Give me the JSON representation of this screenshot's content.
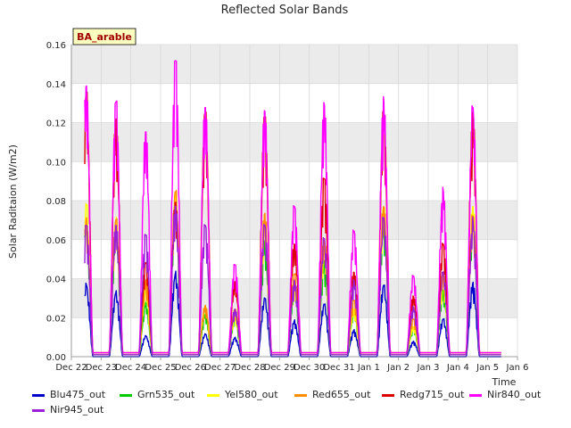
{
  "chart_data": {
    "type": "line",
    "title": "Reflected Solar Bands",
    "xlabel": "Time",
    "ylabel": "Solar Raditaion (W/m2)",
    "annotation": "BA_arable",
    "ylim": [
      0.0,
      0.16
    ],
    "yticks": [
      "0.00",
      "0.02",
      "0.04",
      "0.06",
      "0.08",
      "0.10",
      "0.12",
      "0.14",
      "0.16"
    ],
    "xlim": [
      0,
      15
    ],
    "xticks": [
      {
        "x": 0,
        "label": "Dec 22"
      },
      {
        "x": 1,
        "label": "Dec 23"
      },
      {
        "x": 2,
        "label": "Dec 24"
      },
      {
        "x": 3,
        "label": "Dec 25"
      },
      {
        "x": 4,
        "label": "Dec 26"
      },
      {
        "x": 5,
        "label": "Dec 27"
      },
      {
        "x": 6,
        "label": "Dec 28"
      },
      {
        "x": 7,
        "label": "Dec 29"
      },
      {
        "x": 8,
        "label": "Dec 30"
      },
      {
        "x": 9,
        "label": "Dec 31"
      },
      {
        "x": 10,
        "label": "Jan 1"
      },
      {
        "x": 11,
        "label": "Jan 2"
      },
      {
        "x": 12,
        "label": "Jan 3"
      },
      {
        "x": 13,
        "label": "Jan 4"
      },
      {
        "x": 14,
        "label": "Jan 5"
      },
      {
        "x": 15,
        "label": "Jan 6"
      }
    ],
    "grid": true,
    "legend_position": "bottom",
    "series": [
      {
        "name": "Blu475_out",
        "color": "#0000cc",
        "night": 0.0,
        "peaks": [
          0.038,
          0.034,
          0.011,
          0.044,
          0.012,
          0.01,
          0.031,
          0.019,
          0.028,
          0.014,
          0.038,
          0.008,
          0.02,
          0.039
        ]
      },
      {
        "name": "Grn535_out",
        "color": "#00cc00",
        "night": 0.001,
        "peaks": [
          0.07,
          0.066,
          0.028,
          0.08,
          0.022,
          0.02,
          0.06,
          0.036,
          0.05,
          0.024,
          0.073,
          0.015,
          0.035,
          0.073
        ]
      },
      {
        "name": "Yel580_out",
        "color": "#ffff00",
        "night": 0.001,
        "peaks": [
          0.081,
          0.072,
          0.035,
          0.085,
          0.026,
          0.022,
          0.067,
          0.04,
          0.058,
          0.025,
          0.079,
          0.016,
          0.04,
          0.08
        ]
      },
      {
        "name": "Red655_out",
        "color": "#ff8c00",
        "night": 0.002,
        "peaks": [
          0.072,
          0.073,
          0.04,
          0.088,
          0.027,
          0.025,
          0.076,
          0.044,
          0.062,
          0.03,
          0.08,
          0.02,
          0.045,
          0.075
        ]
      },
      {
        "name": "Redg715_out",
        "color": "#dd0000",
        "night": 0.002,
        "peaks": [
          0.14,
          0.125,
          0.05,
          0.082,
          0.13,
          0.04,
          0.128,
          0.06,
          0.095,
          0.045,
          0.13,
          0.032,
          0.06,
          0.128
        ]
      },
      {
        "name": "Nir840_out",
        "color": "#ff00ff",
        "night": 0.002,
        "peaks": [
          0.144,
          0.136,
          0.12,
          0.158,
          0.133,
          0.049,
          0.131,
          0.08,
          0.134,
          0.067,
          0.136,
          0.043,
          0.088,
          0.133
        ]
      },
      {
        "name": "Nir945_out",
        "color": "#9a1fd6",
        "night": 0.001,
        "peaks": [
          0.07,
          0.07,
          0.065,
          0.08,
          0.07,
          0.025,
          0.07,
          0.04,
          0.063,
          0.04,
          0.074,
          0.026,
          0.045,
          0.072
        ]
      }
    ]
  }
}
